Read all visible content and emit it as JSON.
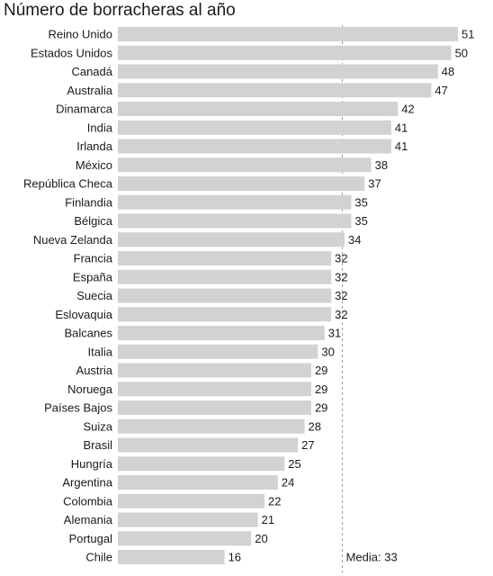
{
  "chart_data": {
    "type": "bar",
    "orientation": "horizontal",
    "title": "Número de borracheras al año",
    "categories": [
      "Reino Unido",
      "Estados Unidos",
      "Canadá",
      "Australia",
      "Dinamarca",
      "India",
      "Irlanda",
      "México",
      "República Checa",
      "Finlandia",
      "Bélgica",
      "Nueva Zelanda",
      "Francia",
      "España",
      "Suecia",
      "Eslovaquia",
      "Balcanes",
      "Italia",
      "Austria",
      "Noruega",
      "Países Bajos",
      "Suiza",
      "Brasil",
      "Hungría",
      "Argentina",
      "Colombia",
      "Alemania",
      "Portugal",
      "Chile"
    ],
    "values": [
      51,
      50,
      48,
      47,
      42,
      41,
      41,
      38,
      37,
      35,
      35,
      34,
      32,
      32,
      32,
      32,
      31,
      30,
      29,
      29,
      29,
      28,
      27,
      25,
      24,
      22,
      21,
      20,
      16
    ],
    "value_labels": [
      "51",
      "50",
      "48",
      "47",
      "42",
      "41",
      "41",
      "38",
      "37",
      "35",
      "35",
      "34",
      "32",
      "32",
      "32",
      "32",
      "31",
      "30",
      "29",
      "29",
      "29",
      "28",
      "27",
      "25",
      "24",
      "22",
      "21",
      "20",
      "16"
    ],
    "xlim": [
      0,
      51
    ],
    "mean": 33,
    "mean_label": "Media: 33",
    "colors": {
      "bar": "#d2d2d2",
      "mean_line": "#9a9a9a",
      "text": "#1a1a1a"
    }
  }
}
